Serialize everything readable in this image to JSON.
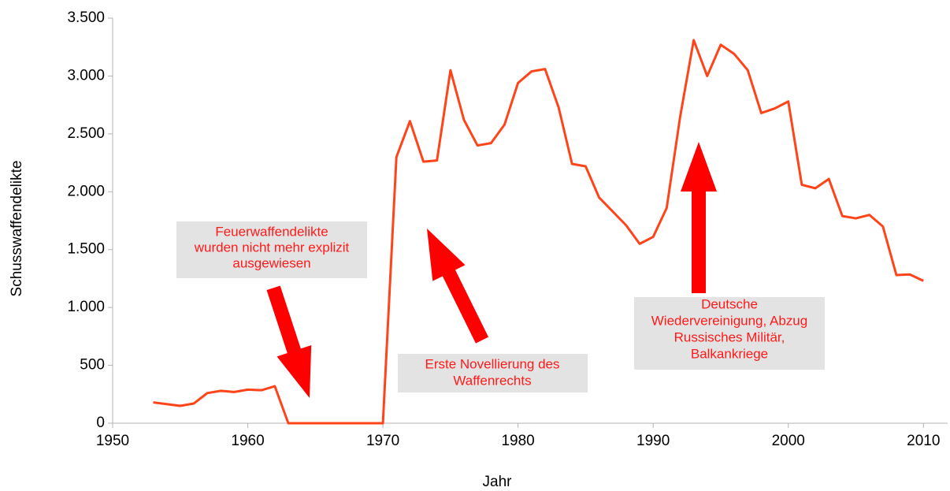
{
  "chart_data": {
    "type": "line",
    "x_label": "Jahr",
    "y_label": "Schusswaffendelikte",
    "x": [
      1953,
      1954,
      1955,
      1956,
      1957,
      1958,
      1959,
      1960,
      1961,
      1962,
      1963,
      1964,
      1965,
      1966,
      1967,
      1968,
      1969,
      1970,
      1971,
      1972,
      1973,
      1974,
      1975,
      1976,
      1977,
      1978,
      1979,
      1980,
      1981,
      1982,
      1983,
      1984,
      1985,
      1986,
      1987,
      1988,
      1989,
      1990,
      1991,
      1992,
      1993,
      1994,
      1995,
      1996,
      1997,
      1998,
      1999,
      2000,
      2001,
      2002,
      2003,
      2004,
      2005,
      2006,
      2007,
      2008,
      2009,
      2010
    ],
    "series": [
      {
        "name": "Schusswaffendelikte",
        "color": "#ff4419",
        "values": [
          180,
          165,
          150,
          170,
          260,
          280,
          270,
          290,
          285,
          320,
          0,
          0,
          0,
          0,
          0,
          0,
          0,
          0,
          2300,
          2610,
          2260,
          2270,
          3050,
          2620,
          2400,
          2420,
          2580,
          2940,
          3040,
          3060,
          2730,
          2240,
          2220,
          1950,
          1830,
          1710,
          1550,
          1610,
          1860,
          2650,
          3310,
          3000,
          3270,
          3190,
          3050,
          2680,
          2720,
          2780,
          2060,
          2030,
          2110,
          1790,
          1770,
          1800,
          1700,
          1280,
          1285,
          1230
        ]
      }
    ],
    "xlim": [
      1950,
      2011.5
    ],
    "xticks": [
      1950,
      1960,
      1970,
      1980,
      1990,
      2000,
      2010
    ],
    "ylim": [
      0,
      3500
    ],
    "yticks": [
      0,
      500,
      {
        "value": 1000,
        "label": "1.000"
      },
      {
        "value": 1500,
        "label": "1.500"
      },
      {
        "value": 2000,
        "label": "2.000"
      },
      {
        "value": 2500,
        "label": "2.500"
      },
      {
        "value": 3000,
        "label": "3.000"
      },
      {
        "value": 3500,
        "label": "3.500"
      }
    ],
    "grid": false,
    "annotations": [
      {
        "lines": [
          "Feuerwaffendelikte",
          "wurden nicht mehr explizit",
          "ausgewiesen"
        ]
      },
      {
        "lines": [
          "Erste Novellierung des",
          "Waffenrechts"
        ]
      },
      {
        "lines": [
          "Deutsche",
          "Wiedervereinigung, Abzug",
          "Russisches Militär,",
          "Balkankriege"
        ]
      }
    ]
  }
}
